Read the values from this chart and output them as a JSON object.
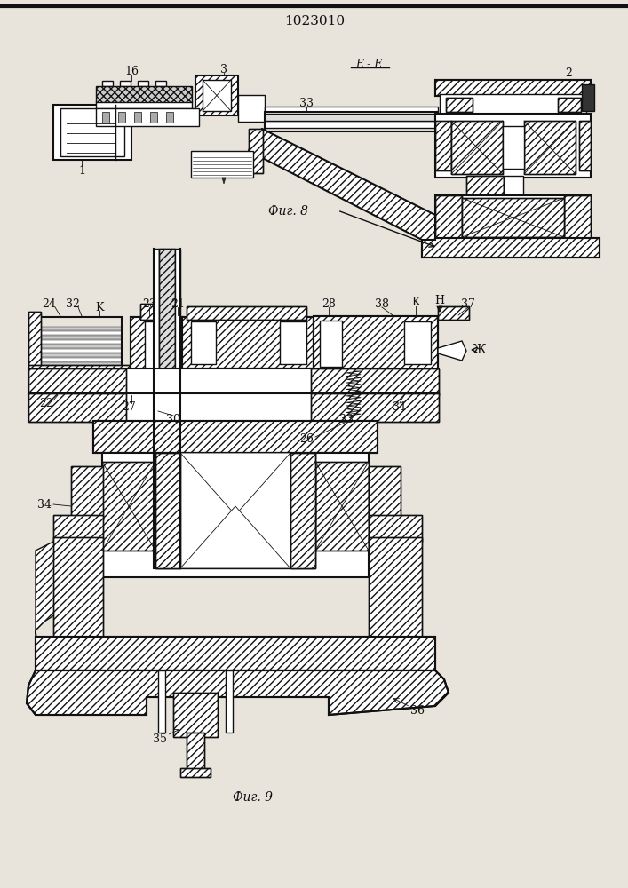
{
  "title": "1023010",
  "bg_color": "#e8e4dc",
  "line_color": "#111111",
  "hatch_color": "#111111",
  "fig8_caption": "Фиг. 8",
  "fig9_caption": "Фиг. 9",
  "ee_label": "E - E"
}
